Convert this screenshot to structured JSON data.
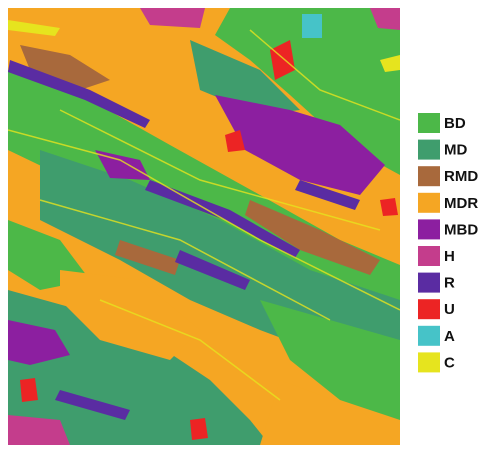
{
  "legend": {
    "items": [
      {
        "label": "BD",
        "color": "#4cb848"
      },
      {
        "label": "MD",
        "color": "#3f9d6d"
      },
      {
        "label": "RMD",
        "color": "#a8693c"
      },
      {
        "label": "MDR",
        "color": "#f5a623"
      },
      {
        "label": "MBD",
        "color": "#8c1fa0"
      },
      {
        "label": "H",
        "color": "#c43d8c"
      },
      {
        "label": "R",
        "color": "#5a2ca2"
      },
      {
        "label": "U",
        "color": "#ec2424"
      },
      {
        "label": "A",
        "color": "#46c3c8"
      },
      {
        "label": "C",
        "color": "#e6e41e"
      }
    ]
  }
}
